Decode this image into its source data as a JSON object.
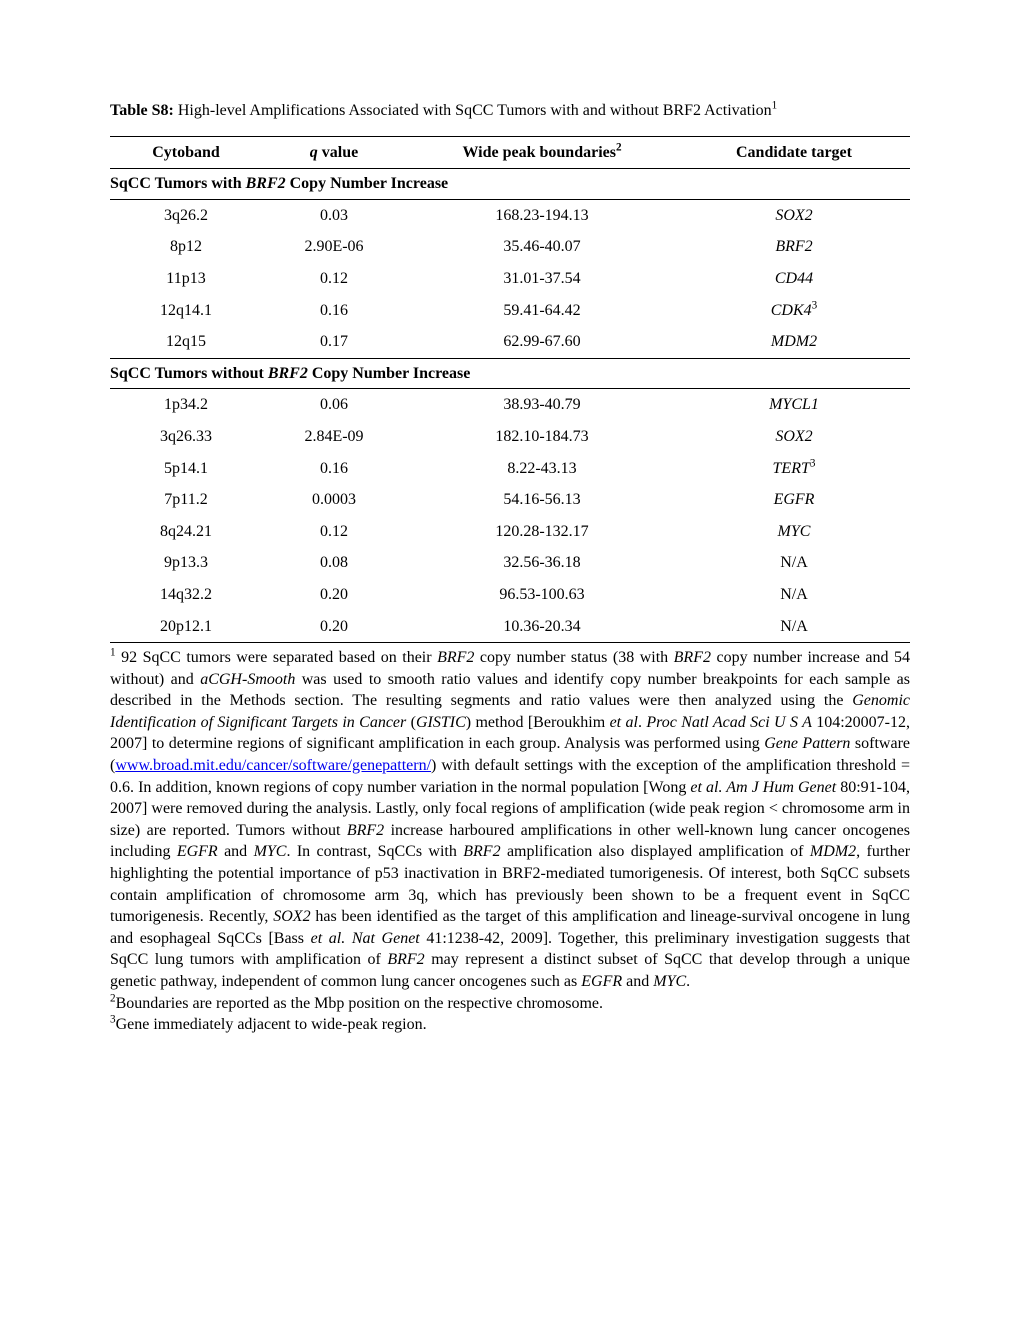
{
  "title": {
    "label": "Table S8:",
    "text_before": " High-level Amplifications Associated with SqCC Tumors with and without BRF2 Activation",
    "sup": "1"
  },
  "columns": {
    "cytoband": "Cytoband",
    "qvalue_prefix": "q",
    "qvalue_rest": " value",
    "peak": "Wide peak boundaries",
    "peak_sup": "2",
    "target": "Candidate target"
  },
  "section1": {
    "header_prefix": "SqCC Tumors with ",
    "header_gene": "BRF2",
    "header_suffix": " Copy Number Increase",
    "rows": [
      {
        "cytoband": "3q26.2",
        "q": "0.03",
        "peak": "168.23-194.13",
        "target": "SOX2",
        "sup": ""
      },
      {
        "cytoband": "8p12",
        "q": "2.90E-06",
        "peak": "35.46-40.07",
        "target": "BRF2",
        "sup": ""
      },
      {
        "cytoband": "11p13",
        "q": "0.12",
        "peak": "31.01-37.54",
        "target": "CD44",
        "sup": ""
      },
      {
        "cytoband": "12q14.1",
        "q": "0.16",
        "peak": "59.41-64.42",
        "target": "CDK4",
        "sup": "3"
      },
      {
        "cytoband": "12q15",
        "q": "0.17",
        "peak": "62.99-67.60",
        "target": "MDM2",
        "sup": ""
      }
    ]
  },
  "section2": {
    "header_prefix": "SqCC Tumors without ",
    "header_gene": "BRF2",
    "header_suffix": " Copy Number Increase",
    "rows": [
      {
        "cytoband": "1p34.2",
        "q": "0.06",
        "peak": "38.93-40.79",
        "target": "MYCL1",
        "sup": "",
        "italic": true
      },
      {
        "cytoband": "3q26.33",
        "q": "2.84E-09",
        "peak": "182.10-184.73",
        "target": "SOX2",
        "sup": "",
        "italic": true
      },
      {
        "cytoband": "5p14.1",
        "q": "0.16",
        "peak": "8.22-43.13",
        "target": "TERT",
        "sup": "3",
        "italic": true
      },
      {
        "cytoband": "7p11.2",
        "q": "0.0003",
        "peak": "54.16-56.13",
        "target": "EGFR",
        "sup": "",
        "italic": true
      },
      {
        "cytoband": "8q24.21",
        "q": "0.12",
        "peak": "120.28-132.17",
        "target": "MYC",
        "sup": "",
        "italic": true
      },
      {
        "cytoband": "9p13.3",
        "q": "0.08",
        "peak": "32.56-36.18",
        "target": "N/A",
        "sup": "",
        "italic": false
      },
      {
        "cytoband": "14q32.2",
        "q": "0.20",
        "peak": "96.53-100.63",
        "target": "N/A",
        "sup": "",
        "italic": false
      },
      {
        "cytoband": "20p12.1",
        "q": "0.20",
        "peak": "10.36-20.34",
        "target": "N/A",
        "sup": "",
        "italic": false
      }
    ]
  },
  "footnotes": {
    "f1_sup": "1",
    "f1_a": " 92 SqCC tumors were separated based on their ",
    "f1_b": "BRF2",
    "f1_c": " copy number status (38 with ",
    "f1_d": "BRF2",
    "f1_e": " copy number increase and 54 without) and ",
    "f1_f": "aCGH-Smooth",
    "f1_g": " was used to smooth ratio values and identify copy number breakpoints for each sample as described in the Methods section.  The resulting segments and ratio values were then analyzed using the ",
    "f1_h": "Genomic Identification of Significant Targets in Cancer",
    "f1_i": " (",
    "f1_j": "GISTIC",
    "f1_k": ") method [Beroukhim ",
    "f1_l": "et al",
    "f1_m": ". ",
    "f1_n": "Proc Natl Acad Sci U S A",
    "f1_o": " 104:20007-12, 2007] to determine regions of significant amplification in each group.  Analysis was performed using ",
    "f1_p": "Gene Pattern",
    "f1_q": " software (",
    "f1_link": "www.broad.mit.edu/cancer/software/genepattern/",
    "f1_r": ") with default settings with the exception of the amplification threshold = 0.6.  In addition, known regions of copy number variation in the normal population [Wong ",
    "f1_s": "et al. Am J Hum Genet",
    "f1_t": " 80:91-104, 2007] were removed during the analysis.  Lastly, only focal regions of amplification (wide peak region < chromosome arm in size) are reported.  Tumors without ",
    "f1_u": "BRF2",
    "f1_v": " increase harboured amplifications in other well-known lung cancer oncogenes including ",
    "f1_w": "EGFR",
    "f1_x": " and ",
    "f1_y": "MYC",
    "f1_z": ".  In contrast, SqCCs with ",
    "f1_aa": "BRF2",
    "f1_ab": " amplification also displayed amplification of ",
    "f1_ac": "MDM2",
    "f1_ad": ", further highlighting the potential importance of p53 inactivation in BRF2-mediated tumorigenesis.  Of interest, both SqCC subsets contain amplification of chromosome arm 3q, which has previously been shown to be a frequent event in SqCC tumorigenesis.  Recently, ",
    "f1_ae": "SOX2",
    "f1_af": " has been identified as the target of this amplification and lineage-survival oncogene in lung and esophageal SqCCs [Bass ",
    "f1_ag": "et al. Nat Genet",
    "f1_ah": " 41:1238-42, 2009].  Together, this preliminary investigation suggests that SqCC lung tumors with amplification of ",
    "f1_ai": "BRF2",
    "f1_aj": " may represent a distinct subset of SqCC that develop through a unique genetic pathway, independent of common lung cancer oncogenes such as ",
    "f1_ak": "EGFR",
    "f1_al": " and ",
    "f1_am": "MYC",
    "f1_an": ".",
    "f2_sup": "2",
    "f2": "Boundaries are reported as the Mbp position on the respective chromosome.",
    "f3_sup": "3",
    "f3": "Gene immediately adjacent to wide-peak region."
  }
}
